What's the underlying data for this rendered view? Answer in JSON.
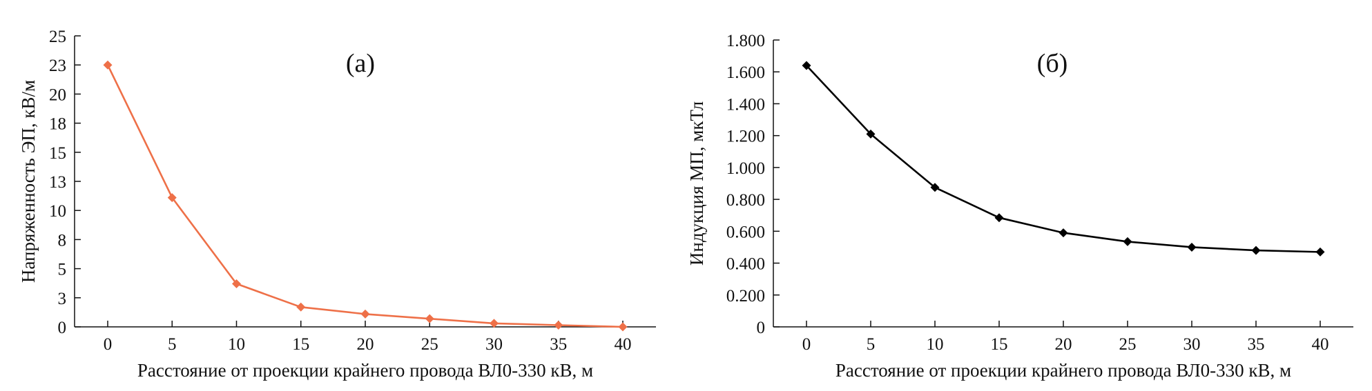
{
  "chart_data": [
    {
      "type": "line",
      "panel_label": "(а)",
      "xlabel": "Расстояние от проекции крайнего провода ВЛ0-330 кВ, м",
      "ylabel": "Напряженность ЭП, кВ/м",
      "xlim": [
        0,
        40
      ],
      "ylim": [
        0,
        25
      ],
      "x_ticks": [
        0,
        5,
        10,
        15,
        20,
        25,
        30,
        35,
        40
      ],
      "x_tick_labels": [
        "0",
        "5",
        "10",
        "15",
        "20",
        "25",
        "30",
        "35",
        "40"
      ],
      "y_ticks": [
        0,
        2.5,
        5,
        7.5,
        10,
        12.5,
        15,
        17.5,
        20,
        22.5,
        25
      ],
      "y_tick_labels": [
        "0",
        "3",
        "5",
        "8",
        "10",
        "13",
        "15",
        "18",
        "20",
        "23",
        "25"
      ],
      "grid": false,
      "line_color": "#ee7048",
      "series": [
        {
          "x": [
            0,
            5,
            10,
            15,
            20,
            25,
            30,
            35,
            40
          ],
          "values": [
            22.5,
            11.1,
            3.7,
            1.7,
            1.1,
            0.7,
            0.3,
            0.15,
            0
          ]
        }
      ]
    },
    {
      "type": "line",
      "panel_label": "(б)",
      "xlabel": "Расстояние от проекции крайнего провода ВЛ0-330 кВ, м",
      "ylabel": "Индукция МП, мкТл",
      "xlim": [
        0,
        40
      ],
      "ylim": [
        0,
        1.8
      ],
      "x_ticks": [
        0,
        5,
        10,
        15,
        20,
        25,
        30,
        35,
        40
      ],
      "x_tick_labels": [
        "0",
        "5",
        "10",
        "15",
        "20",
        "25",
        "30",
        "35",
        "40"
      ],
      "y_ticks": [
        0,
        0.2,
        0.4,
        0.6,
        0.8,
        1.0,
        1.2,
        1.4,
        1.6,
        1.8
      ],
      "y_tick_labels": [
        "0",
        "0.200",
        "0.400",
        "0.600",
        "0.800",
        "1.000",
        "1.200",
        "1.400",
        "1.600",
        "1.800"
      ],
      "grid": false,
      "line_color": "#000000",
      "series": [
        {
          "x": [
            0,
            5,
            10,
            15,
            20,
            25,
            30,
            35,
            40
          ],
          "values": [
            1.64,
            1.21,
            0.875,
            0.685,
            0.59,
            0.535,
            0.5,
            0.48,
            0.47
          ]
        }
      ]
    }
  ]
}
